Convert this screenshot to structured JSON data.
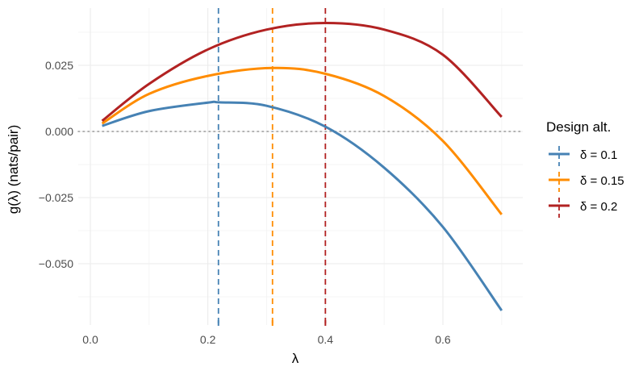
{
  "chart_data": {
    "type": "line",
    "title": "",
    "xlabel": "λ",
    "ylabel": "g(λ) (nats/pair)",
    "xlim": [
      0.0,
      0.7
    ],
    "ylim": [
      -0.07,
      0.043
    ],
    "x_ticks": [
      0.0,
      0.2,
      0.4,
      0.6
    ],
    "x_tick_labels": [
      "0.0",
      "0.2",
      "0.4",
      "0.6"
    ],
    "y_ticks": [
      0.025,
      0.0,
      -0.025,
      -0.05
    ],
    "y_tick_labels": [
      "0.025",
      "0.000",
      "−0.025",
      "−0.050"
    ],
    "grid": true,
    "hline": {
      "y": 0.0,
      "style": "dotted",
      "color": "#999999"
    },
    "legend": {
      "title": "Design alt.",
      "position": "right"
    },
    "series": [
      {
        "name": "δ = 0.1",
        "label_sym": "δ",
        "label_val": "0.1",
        "color": "#4682B4",
        "optimum_lambda": 0.218,
        "peak_g": 0.011,
        "x": [
          0.02,
          0.1,
          0.2,
          0.22,
          0.3,
          0.4,
          0.5,
          0.6,
          0.7
        ],
        "y": [
          0.0021,
          0.0077,
          0.0109,
          0.011,
          0.0097,
          0.0018,
          -0.0137,
          -0.0361,
          -0.0677
        ]
      },
      {
        "name": "δ = 0.15",
        "label_sym": "δ",
        "label_val": "0.15",
        "color": "#FF8C00",
        "optimum_lambda": 0.31,
        "peak_g": 0.024,
        "x": [
          0.02,
          0.1,
          0.2,
          0.31,
          0.4,
          0.5,
          0.6,
          0.7
        ],
        "y": [
          0.003,
          0.0142,
          0.021,
          0.024,
          0.0218,
          0.0134,
          -0.0036,
          -0.0314
        ]
      },
      {
        "name": "δ = 0.2",
        "label_sym": "δ",
        "label_val": "0.2",
        "color": "#B22222",
        "optimum_lambda": 0.4,
        "peak_g": 0.041,
        "x": [
          0.02,
          0.1,
          0.2,
          0.3,
          0.4,
          0.5,
          0.6,
          0.7
        ],
        "y": [
          0.004,
          0.018,
          0.031,
          0.0385,
          0.041,
          0.0385,
          0.029,
          0.0055
        ]
      }
    ]
  }
}
